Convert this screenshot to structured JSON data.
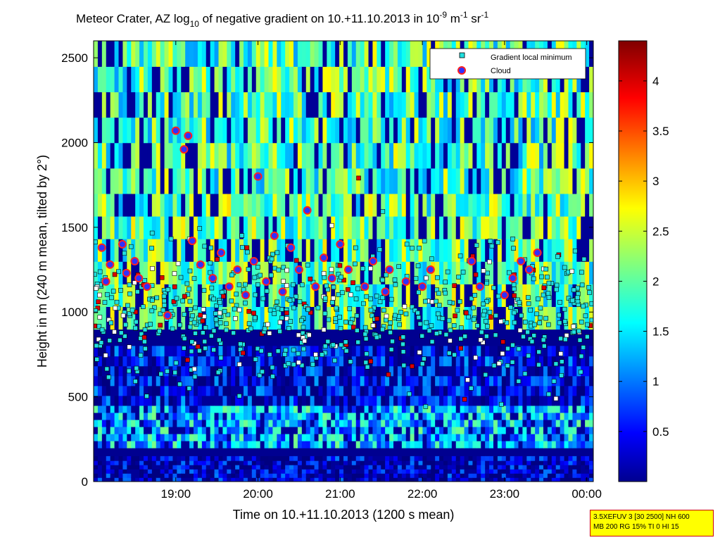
{
  "colors": {
    "background": "#000090",
    "cloud_marker_fill": "#3030ff",
    "cloud_marker_edge": "#ff2020",
    "gradient_marker_fill": "#20e0e0",
    "info_box_bg": "#ffff00"
  },
  "info_box": {
    "line1": "3.5XEFUV 3 [30 2500] NH 600",
    "line2": "MB 200 RG 15% TI 0 HI 15"
  },
  "chart_data": {
    "type": "heatmap",
    "title": {
      "prefix": "Meteor Crater, AZ log",
      "sub10": "10",
      "middle": " of negative gradient on 10.+11.10.2013 in 10",
      "exp1": "-9",
      "mid2": " m",
      "exp2": "-1",
      "mid3": " sr",
      "exp3": "-1"
    },
    "xlabel": "Time on 10.+11.10.2013 (1200 s mean)",
    "ylabel": "Height in m (240 m mean, tilted by 2°)",
    "x_tick_labels": [
      "19:00",
      "20:00",
      "21:00",
      "22:00",
      "23:00",
      "00:00"
    ],
    "x_tick_hours": [
      19,
      20,
      21,
      22,
      23,
      24
    ],
    "xlim_hours": [
      18.0,
      24.08
    ],
    "y_ticks": [
      0,
      500,
      1000,
      1500,
      2000,
      2500
    ],
    "ylim": [
      0,
      2600
    ],
    "colorbar": {
      "ticks": [
        0.5,
        1,
        1.5,
        2,
        2.5,
        3,
        3.5,
        4
      ],
      "tick_labels": [
        "0.5",
        "1",
        "1.5",
        "2",
        "2.5",
        "3",
        "3.5",
        "4"
      ],
      "range": [
        0,
        4.4
      ],
      "colormap": "jet"
    },
    "legend": {
      "placement": "top-right",
      "entries": [
        "Gradient local minimum",
        "Cloud"
      ]
    },
    "field_bands": [
      {
        "height_range": [
          0,
          150
        ],
        "value": 0.3
      },
      {
        "height_range": [
          200,
          450
        ],
        "value": 1.4
      },
      {
        "height_range": [
          450,
          800
        ],
        "value": 0.5
      },
      {
        "height_range": [
          900,
          1700
        ],
        "value": 2.1
      },
      {
        "height_range": [
          1700,
          2600
        ],
        "value": 2.0
      }
    ],
    "gradient_minimum_band": {
      "height_range": [
        650,
        1950
      ],
      "time_range_hours": [
        18.0,
        24.08
      ]
    },
    "cloud_points": [
      {
        "t": 18.1,
        "h": 1380
      },
      {
        "t": 18.15,
        "h": 1180
      },
      {
        "t": 18.2,
        "h": 1280
      },
      {
        "t": 18.35,
        "h": 1400
      },
      {
        "t": 18.4,
        "h": 1230
      },
      {
        "t": 18.5,
        "h": 1300
      },
      {
        "t": 18.55,
        "h": 1200
      },
      {
        "t": 18.65,
        "h": 1150
      },
      {
        "t": 18.9,
        "h": 980
      },
      {
        "t": 19.0,
        "h": 2070
      },
      {
        "t": 19.1,
        "h": 1960
      },
      {
        "t": 19.15,
        "h": 2040
      },
      {
        "t": 19.2,
        "h": 1420
      },
      {
        "t": 19.3,
        "h": 1280
      },
      {
        "t": 19.45,
        "h": 1200
      },
      {
        "t": 19.55,
        "h": 1350
      },
      {
        "t": 19.65,
        "h": 1150
      },
      {
        "t": 19.75,
        "h": 1250
      },
      {
        "t": 19.85,
        "h": 1100
      },
      {
        "t": 19.95,
        "h": 1300
      },
      {
        "t": 20.0,
        "h": 1800
      },
      {
        "t": 20.1,
        "h": 1180
      },
      {
        "t": 20.2,
        "h": 1450
      },
      {
        "t": 20.3,
        "h": 1120
      },
      {
        "t": 20.4,
        "h": 1380
      },
      {
        "t": 20.5,
        "h": 1250
      },
      {
        "t": 20.6,
        "h": 1600
      },
      {
        "t": 20.7,
        "h": 1150
      },
      {
        "t": 20.8,
        "h": 1320
      },
      {
        "t": 20.9,
        "h": 1200
      },
      {
        "t": 21.0,
        "h": 1400
      },
      {
        "t": 21.1,
        "h": 1250
      },
      {
        "t": 21.3,
        "h": 1150
      },
      {
        "t": 21.4,
        "h": 1300
      },
      {
        "t": 21.55,
        "h": 1120
      },
      {
        "t": 21.6,
        "h": 1250
      },
      {
        "t": 21.8,
        "h": 1180
      },
      {
        "t": 22.0,
        "h": 1150
      },
      {
        "t": 22.1,
        "h": 1250
      },
      {
        "t": 22.6,
        "h": 1300
      },
      {
        "t": 22.7,
        "h": 1150
      },
      {
        "t": 23.0,
        "h": 1100
      },
      {
        "t": 23.1,
        "h": 1200
      },
      {
        "t": 23.2,
        "h": 1300
      },
      {
        "t": 23.3,
        "h": 1250
      },
      {
        "t": 23.4,
        "h": 1350
      }
    ]
  }
}
